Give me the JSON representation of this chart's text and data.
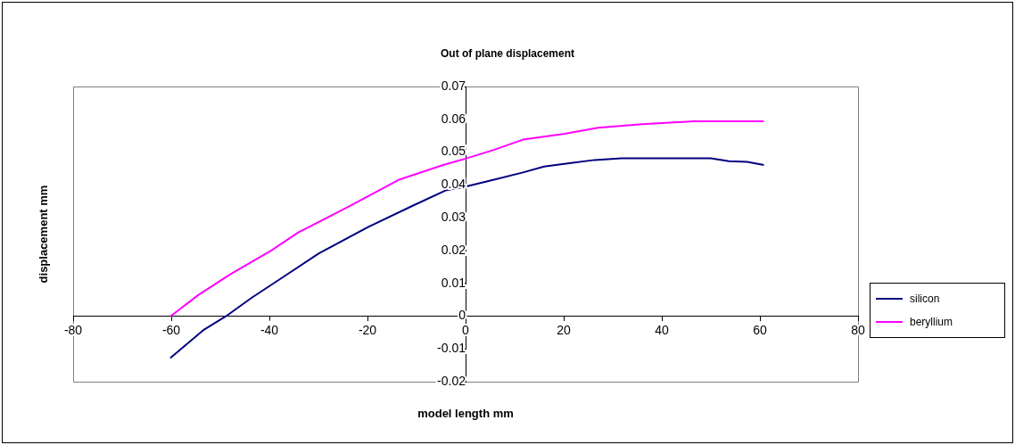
{
  "chart_data": {
    "type": "line",
    "title": "Out of plane displacement",
    "xlabel": "model length mm",
    "ylabel": "displacement mm",
    "xlim": [
      -80,
      80
    ],
    "xticks": [
      -80,
      -60,
      -40,
      -20,
      0,
      20,
      40,
      60,
      80
    ],
    "ylim": [
      -0.02,
      0.07
    ],
    "yticks": [
      -0.02,
      -0.01,
      0,
      0.01,
      0.02,
      0.03,
      0.04,
      0.05,
      0.06,
      0.07
    ],
    "grid": false,
    "legend": "right",
    "marker": "none",
    "line_style": "solid",
    "series": [
      {
        "name": "silicon",
        "color": "#000080",
        "x": [
          -60.2,
          -53.3,
          -48.8,
          -43.7,
          -37.7,
          -29.9,
          -19.7,
          -10.7,
          -4.1,
          0,
          5.6,
          11.7,
          16,
          21.5,
          26.3,
          31.8,
          50,
          53.7,
          57.4,
          60.8
        ],
        "values": [
          -0.0128,
          -0.0041,
          0,
          0.0055,
          0.0114,
          0.0191,
          0.0273,
          0.0337,
          0.0383,
          0.0395,
          0.0415,
          0.0438,
          0.0456,
          0.0467,
          0.0476,
          0.0481,
          0.0481,
          0.0472,
          0.047,
          0.0461
        ]
      },
      {
        "name": "beryllium",
        "color": "#ff00ff",
        "x": [
          -60.1,
          -54.5,
          -47.9,
          -39.6,
          -34.1,
          -23.9,
          -13.7,
          -4.7,
          0,
          5.6,
          11.7,
          20.2,
          27,
          36,
          46.5,
          60.8
        ],
        "values": [
          0,
          0.0064,
          0.0128,
          0.02,
          0.0255,
          0.0333,
          0.0415,
          0.046,
          0.048,
          0.0506,
          0.0538,
          0.0556,
          0.0574,
          0.0585,
          0.0594,
          0.0594
        ]
      }
    ]
  }
}
